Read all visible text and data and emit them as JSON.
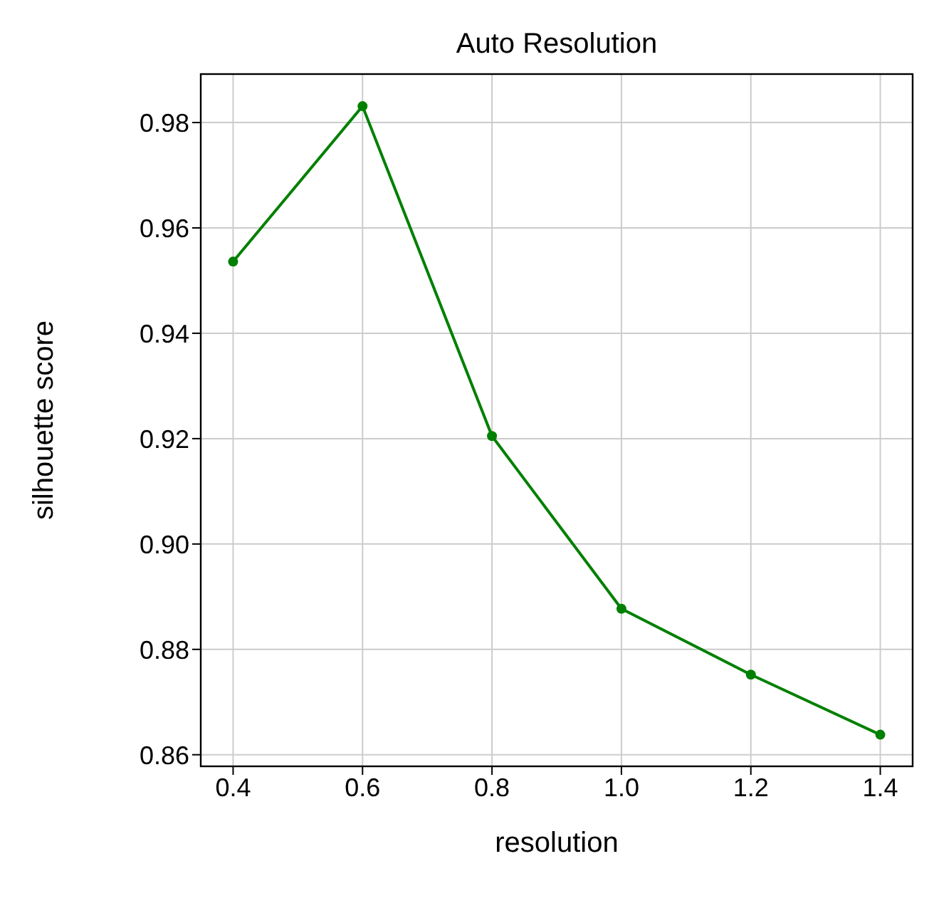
{
  "chart_data": {
    "type": "line",
    "title": "Auto Resolution",
    "xlabel": "resolution",
    "ylabel": "silhouette score",
    "x": [
      0.4,
      0.6,
      0.8,
      1.0,
      1.2,
      1.4
    ],
    "series": [
      {
        "color": "#008000",
        "values": [
          0.9536,
          0.9831,
          0.9205,
          0.8877,
          0.8752,
          0.8638
        ]
      }
    ],
    "xlim": [
      0.35,
      1.45
    ],
    "xticks": [
      {
        "value": 0.4,
        "label": "0.4"
      },
      {
        "value": 0.6,
        "label": "0.6"
      },
      {
        "value": 0.8,
        "label": "0.8"
      },
      {
        "value": 1.0,
        "label": "1.0"
      },
      {
        "value": 1.2,
        "label": "1.2"
      },
      {
        "value": 1.4,
        "label": "1.4"
      }
    ],
    "ylim": [
      0.8578,
      0.9892
    ],
    "yticks": [
      {
        "value": 0.86,
        "label": "0.86"
      },
      {
        "value": 0.88,
        "label": "0.88"
      },
      {
        "value": 0.9,
        "label": "0.90"
      },
      {
        "value": 0.92,
        "label": "0.92"
      },
      {
        "value": 0.94,
        "label": "0.94"
      },
      {
        "value": 0.96,
        "label": "0.96"
      },
      {
        "value": 0.98,
        "label": "0.98"
      }
    ],
    "grid": true,
    "marker": "circle",
    "line_style": "solid"
  }
}
